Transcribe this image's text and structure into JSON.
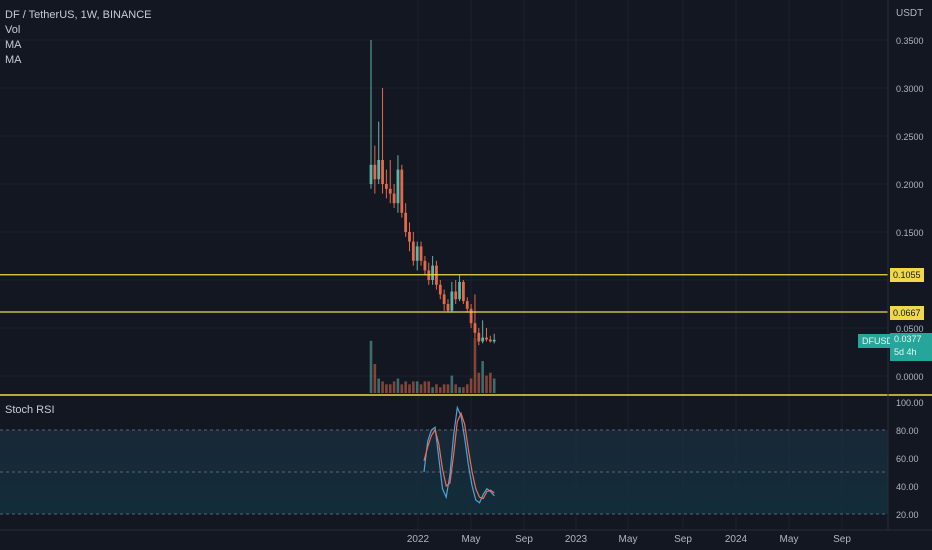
{
  "legend": {
    "symbol_line": "DF / TetherUS, 1W, BINANCE",
    "vol": "Vol",
    "ma1": "MA",
    "ma2": "MA"
  },
  "price_axis": {
    "currency": "USDT",
    "ticks": [
      "0.3500",
      "0.3000",
      "0.2500",
      "0.2000",
      "0.1500",
      "0.0500",
      "0.0000"
    ]
  },
  "horizontal_levels": [
    {
      "label": "0.1055",
      "value": 0.1055,
      "color": "#f0d84a"
    },
    {
      "label": "0.0667",
      "value": 0.0667,
      "color": "#f0d84a"
    }
  ],
  "last_price": {
    "symbol": "DFUSDT",
    "price": "0.0377",
    "countdown": "5d 4h"
  },
  "rsi": {
    "title": "Stoch RSI",
    "ticks": [
      "100.00",
      "80.00",
      "60.00",
      "40.00",
      "20.00"
    ],
    "bands": [
      80,
      50,
      20
    ]
  },
  "time_axis": {
    "labels": [
      "2022",
      "May",
      "Sep",
      "2023",
      "May",
      "Sep",
      "2024",
      "May",
      "Sep"
    ]
  },
  "colors": {
    "up": "#5fb3a8",
    "down": "#e06a4a",
    "level": "#f0d84a",
    "k_line": "#4da3d9",
    "d_line": "#ef6c55"
  },
  "chart_data": {
    "type": "candlestick",
    "title": "DF / TetherUS, 1W, BINANCE",
    "ylim": [
      0,
      0.37
    ],
    "candles": [
      {
        "o": 0.2,
        "h": 0.35,
        "l": 0.195,
        "c": 0.22
      },
      {
        "o": 0.22,
        "h": 0.24,
        "l": 0.19,
        "c": 0.205
      },
      {
        "o": 0.205,
        "h": 0.265,
        "l": 0.2,
        "c": 0.225
      },
      {
        "o": 0.225,
        "h": 0.3,
        "l": 0.19,
        "c": 0.2
      },
      {
        "o": 0.2,
        "h": 0.215,
        "l": 0.185,
        "c": 0.195
      },
      {
        "o": 0.195,
        "h": 0.225,
        "l": 0.18,
        "c": 0.19
      },
      {
        "o": 0.19,
        "h": 0.2,
        "l": 0.175,
        "c": 0.18
      },
      {
        "o": 0.18,
        "h": 0.23,
        "l": 0.17,
        "c": 0.215
      },
      {
        "o": 0.215,
        "h": 0.22,
        "l": 0.165,
        "c": 0.17
      },
      {
        "o": 0.17,
        "h": 0.18,
        "l": 0.145,
        "c": 0.15
      },
      {
        "o": 0.15,
        "h": 0.16,
        "l": 0.13,
        "c": 0.14
      },
      {
        "o": 0.14,
        "h": 0.15,
        "l": 0.115,
        "c": 0.12
      },
      {
        "o": 0.12,
        "h": 0.14,
        "l": 0.11,
        "c": 0.135
      },
      {
        "o": 0.135,
        "h": 0.14,
        "l": 0.115,
        "c": 0.12
      },
      {
        "o": 0.12,
        "h": 0.125,
        "l": 0.105,
        "c": 0.11
      },
      {
        "o": 0.11,
        "h": 0.118,
        "l": 0.095,
        "c": 0.1
      },
      {
        "o": 0.1,
        "h": 0.125,
        "l": 0.095,
        "c": 0.115
      },
      {
        "o": 0.115,
        "h": 0.12,
        "l": 0.09,
        "c": 0.095
      },
      {
        "o": 0.095,
        "h": 0.1,
        "l": 0.08,
        "c": 0.085
      },
      {
        "o": 0.085,
        "h": 0.09,
        "l": 0.068,
        "c": 0.075
      },
      {
        "o": 0.075,
        "h": 0.08,
        "l": 0.066,
        "c": 0.068
      },
      {
        "o": 0.068,
        "h": 0.098,
        "l": 0.066,
        "c": 0.088
      },
      {
        "o": 0.088,
        "h": 0.1,
        "l": 0.075,
        "c": 0.08
      },
      {
        "o": 0.08,
        "h": 0.105,
        "l": 0.078,
        "c": 0.098
      },
      {
        "o": 0.098,
        "h": 0.1,
        "l": 0.075,
        "c": 0.078
      },
      {
        "o": 0.078,
        "h": 0.082,
        "l": 0.066,
        "c": 0.07
      },
      {
        "o": 0.07,
        "h": 0.075,
        "l": 0.05,
        "c": 0.055
      },
      {
        "o": 0.055,
        "h": 0.085,
        "l": 0.04,
        "c": 0.045
      },
      {
        "o": 0.045,
        "h": 0.05,
        "l": 0.032,
        "c": 0.036
      },
      {
        "o": 0.036,
        "h": 0.058,
        "l": 0.034,
        "c": 0.04
      },
      {
        "o": 0.04,
        "h": 0.05,
        "l": 0.036,
        "c": 0.038
      },
      {
        "o": 0.038,
        "h": 0.042,
        "l": 0.035,
        "c": 0.036
      },
      {
        "o": 0.036,
        "h": 0.044,
        "l": 0.034,
        "c": 0.0377
      }
    ],
    "volume": [
      0.9,
      0.5,
      0.25,
      0.2,
      0.15,
      0.15,
      0.2,
      0.25,
      0.15,
      0.2,
      0.15,
      0.2,
      0.2,
      0.15,
      0.2,
      0.2,
      0.1,
      0.15,
      0.1,
      0.15,
      0.15,
      0.3,
      0.15,
      0.1,
      0.1,
      0.15,
      0.25,
      0.95,
      0.35,
      0.55,
      0.3,
      0.35,
      0.25
    ],
    "stoch_k": [
      50,
      72,
      80,
      82,
      60,
      38,
      32,
      48,
      76,
      96,
      90,
      74,
      55,
      40,
      30,
      28,
      34,
      38,
      36,
      33
    ],
    "stoch_d": [
      58,
      68,
      76,
      80,
      70,
      52,
      40,
      42,
      62,
      86,
      92,
      84,
      66,
      50,
      38,
      32,
      31,
      36,
      37,
      35
    ]
  }
}
